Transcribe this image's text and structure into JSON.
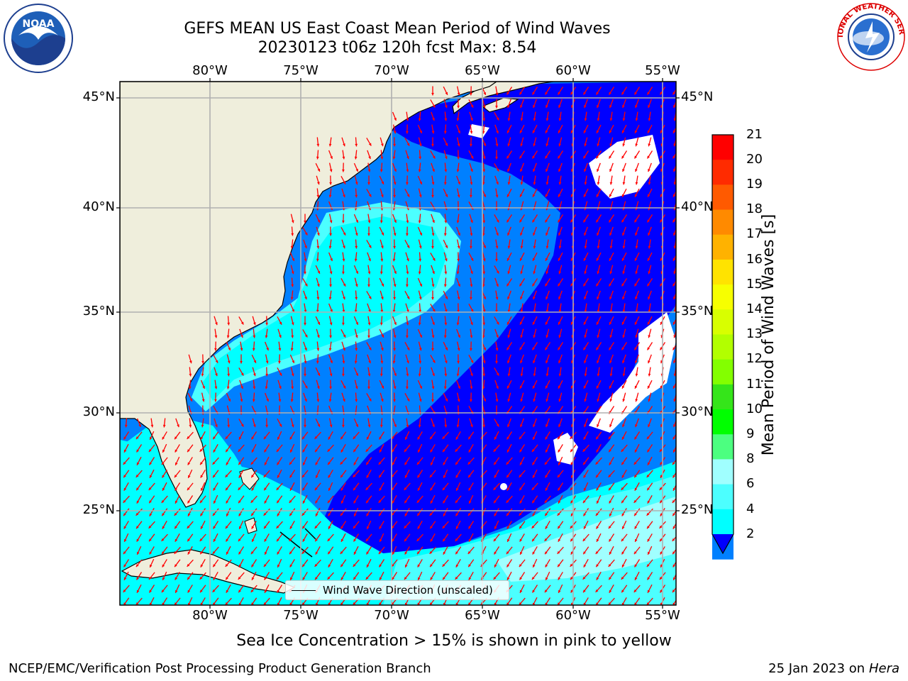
{
  "title": {
    "line1": "GEFS MEAN US East Coast Mean Period of Wind Waves",
    "line2": "20230123 t06z 120h fcst   Max: 8.54"
  },
  "map": {
    "x_ticks": [
      "80°W",
      "75°W",
      "70°W",
      "65°W",
      "60°W",
      "55°W"
    ],
    "y_ticks": [
      "45°N",
      "40°N",
      "35°N",
      "30°N",
      "25°N"
    ],
    "legend_label": "Wind Wave Direction (unscaled)",
    "land_color": "#efeedc",
    "no_data_color": "#ffffff",
    "arrow_color": "#ff0000"
  },
  "colorbar": {
    "label": "Mean Period of Wind Waves [s]",
    "ticks": [
      "21",
      "20",
      "19",
      "18",
      "17",
      "16",
      "15",
      "14",
      "13",
      "12",
      "11",
      "10",
      "9",
      "8",
      "6",
      "4",
      "2"
    ],
    "colors": [
      "#ff0000",
      "#ff2b00",
      "#ff5a00",
      "#ff8a00",
      "#ffb200",
      "#ffe300",
      "#f7ff00",
      "#d8ff00",
      "#b2ff00",
      "#83ff00",
      "#35e51a",
      "#00ff00",
      "#4cff80",
      "#a0ffff",
      "#4cffff",
      "#00ffff",
      "#0080ff"
    ],
    "under_color": "#0000ff"
  },
  "logos": {
    "noaa_text": "NOAA",
    "nws_text": "NATIONAL WEATHER SERVICE"
  },
  "note": "Sea Ice Concentration > 15% is shown in pink to yellow",
  "footer": {
    "left": "NCEP/EMC/Verification Post Processing Product Generation Branch",
    "date": "25 Jan 2023 on",
    "machine": "Hera"
  }
}
